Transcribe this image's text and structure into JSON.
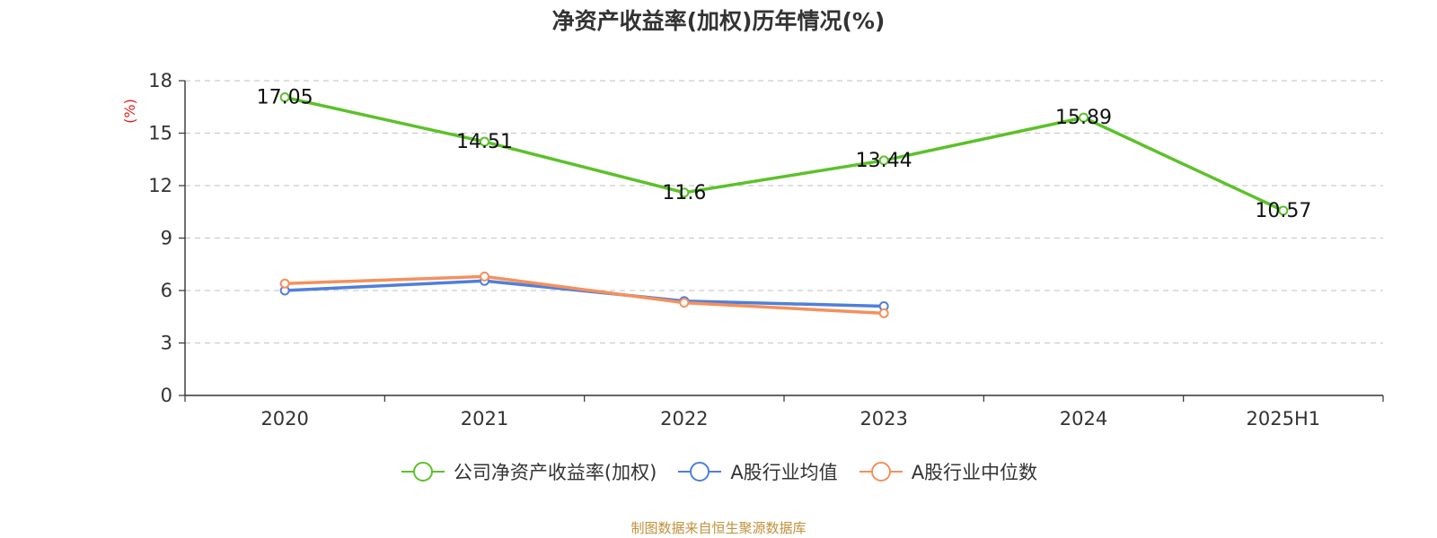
{
  "chart_data": {
    "type": "line",
    "title": "净资产收益率(加权)历年情况(%)",
    "ylabel": "(%)",
    "xlabel": "",
    "ylim": [
      0,
      18
    ],
    "yticks": [
      0,
      3,
      6,
      9,
      12,
      15,
      18
    ],
    "categories": [
      "2020",
      "2021",
      "2022",
      "2023",
      "2024",
      "2025H1"
    ],
    "grid": true,
    "legend_position": "bottom-center",
    "series": [
      {
        "name": "公司净资产收益率(加权)",
        "color": "#5cc12a",
        "values": [
          17.05,
          14.51,
          11.6,
          13.44,
          15.89,
          10.57
        ],
        "labels": [
          "17.05",
          "14.51",
          "11.6",
          "13.44",
          "15.89",
          "10.57"
        ]
      },
      {
        "name": "A股行业均值",
        "color": "#4f7fdb",
        "values": [
          6.0,
          6.55,
          5.4,
          5.1,
          null,
          null
        ]
      },
      {
        "name": "A股行业中位数",
        "color": "#f5905c",
        "values": [
          6.4,
          6.8,
          5.3,
          4.7,
          null,
          null
        ]
      }
    ]
  },
  "footer": "制图数据来自恒生聚源数据库"
}
